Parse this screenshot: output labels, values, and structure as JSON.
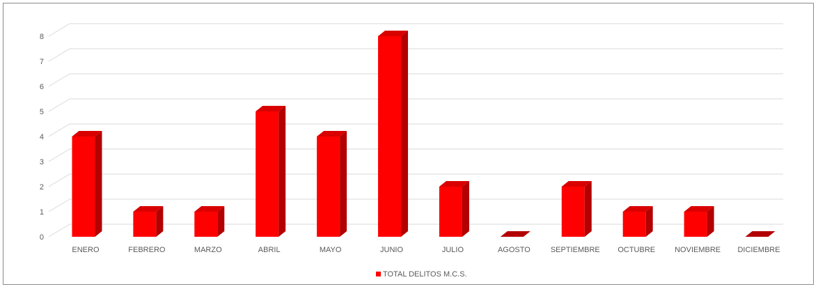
{
  "chart_data": {
    "type": "bar",
    "categories": [
      "ENERO",
      "FEBRERO",
      "MARZO",
      "ABRIL",
      "MAYO",
      "JUNIO",
      "JULIO",
      "AGOSTO",
      "SEPTIEMBRE",
      "OCTUBRE",
      "NOVIEMBRE",
      "DICIEMBRE"
    ],
    "series": [
      {
        "name": "TOTAL DELITOS M.C.S.",
        "values": [
          4,
          1,
          1,
          5,
          4,
          8,
          2,
          0,
          2,
          1,
          1,
          0
        ]
      }
    ],
    "y_ticks": [
      "0",
      "1",
      "2",
      "3",
      "4",
      "5",
      "6",
      "7",
      "8"
    ],
    "ylim": [
      0,
      8
    ],
    "grid": true,
    "legend_position": "bottom",
    "style": "3d-column",
    "colors": {
      "bar_front": "#ff0000",
      "bar_side": "#b30000",
      "bar_top": "#d90000",
      "grid": "#d9d9d9",
      "text": "#595959"
    }
  }
}
